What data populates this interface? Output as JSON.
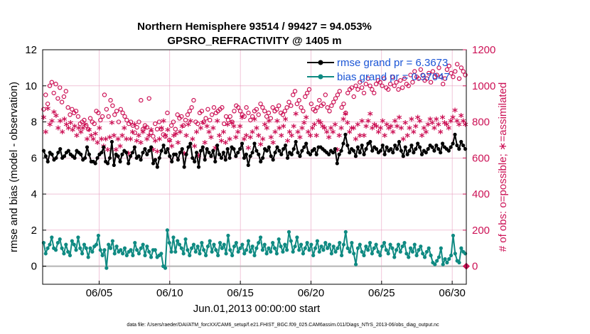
{
  "chart_data": {
    "type": "line",
    "title": "Northern Hemisphere 93514 / 99427 = 94.053%",
    "subtitle": "GPSRO_REFRACTIVITY @ 1405 m",
    "xlabel": "Jun.01,2013 00:00:00 start",
    "ylabel_left": "rmse and bias (model - observation)",
    "ylabel_right": "# of obs: o=possible; ∗=assimilated",
    "footnote": "data file: /Users/raeder/DAI/ATM_forcXX/CAM6_setup/f.e21.FHIST_BGC.f09_025.CAM6assim.011/Diags_NTrS_2013-06/obs_diag_output.nc",
    "x_range": [
      1,
      31
    ],
    "x_ticks": [
      "06/05",
      "06/10",
      "06/15",
      "06/20",
      "06/25",
      "06/30"
    ],
    "x_tick_days": [
      5,
      10,
      15,
      20,
      25,
      30
    ],
    "ylim_left": [
      -1,
      12
    ],
    "y_ticks_left": [
      "0",
      "2",
      "4",
      "6",
      "8",
      "10",
      "12"
    ],
    "ylim_right": [
      -100,
      1200
    ],
    "y_ticks_right": [
      "0",
      "200",
      "400",
      "600",
      "800",
      "1000",
      "1200"
    ],
    "grid": true,
    "legend_position": "top-right",
    "colors": {
      "rmse": "#000000",
      "bias": "#0f8a82",
      "obs": "#cc1155",
      "legend_text": "#1a55d6",
      "zero_line": "#b3b3b3",
      "grid": "#e8a0c0"
    },
    "series": [
      {
        "name": "rmse grand pr = 6.3673",
        "axis": "left",
        "values": [
          6.4,
          6.1,
          5.8,
          6.3,
          6.2,
          5.9,
          6.0,
          6.3,
          6.5,
          6.0,
          6.1,
          6.3,
          6.4,
          6.2,
          6.1,
          6.0,
          6.4,
          6.3,
          6.2,
          5.9,
          6.0,
          6.6,
          6.2,
          5.8,
          5.8,
          5.7,
          6.0,
          6.2,
          6.3,
          6.6,
          5.8,
          5.7,
          6.0,
          6.9,
          5.6,
          6.2,
          6.1,
          5.8,
          6.2,
          6.4,
          6.3,
          5.7,
          6.1,
          6.3,
          6.6,
          6.0,
          6.1,
          5.9,
          6.3,
          6.5,
          6.2,
          6.4,
          6.6,
          5.7,
          5.9,
          5.5,
          6.0,
          6.4,
          6.7,
          6.3,
          6.5,
          6.1,
          5.8,
          6.2,
          6.2,
          5.9,
          6.3,
          6.5,
          5.5,
          6.2,
          6.6,
          6.8,
          6.0,
          5.8,
          6.3,
          5.5,
          6.4,
          6.6,
          5.9,
          6.5,
          6.3,
          6.1,
          6.4,
          5.8,
          6.7,
          6.2,
          6.0,
          6.3,
          5.9,
          6.5,
          6.0,
          6.6,
          6.5,
          6.1,
          6.3,
          6.5,
          6.8,
          6.0,
          6.2,
          5.6,
          6.1,
          6.3,
          6.8,
          6.4,
          6.2,
          5.8,
          6.0,
          6.5,
          6.4,
          6.6,
          6.1,
          5.9,
          6.3,
          6.6,
          6.4,
          6.2,
          6.5,
          6.7,
          6.0,
          6.3,
          6.2,
          6.5,
          6.9,
          6.3,
          6.1,
          6.4,
          6.6,
          6.8,
          6.3,
          6.2,
          6.4,
          6.5,
          6.2,
          6.6,
          6.6,
          6.5,
          6.4,
          6.3,
          6.2,
          6.4,
          6.3,
          6.5,
          5.7,
          6.2,
          6.4,
          6.8,
          7.3,
          6.7,
          6.3,
          6.5,
          6.4,
          6.1,
          6.6,
          6.3,
          6.7,
          6.2,
          6.5,
          6.8,
          6.9,
          6.4,
          6.6,
          6.5,
          6.3,
          6.4,
          6.7,
          6.2,
          6.6,
          6.4,
          6.5,
          6.3,
          6.7,
          6.5,
          6.9,
          6.4,
          6.1,
          6.6,
          6.2,
          6.4,
          6.7,
          6.3,
          6.5,
          6.8,
          6.6,
          6.2,
          6.4,
          6.3,
          6.5,
          6.7,
          6.6,
          6.4,
          6.7,
          6.5,
          6.3,
          6.8,
          6.6,
          6.5,
          6.4,
          6.6,
          6.8,
          7.3,
          6.7,
          6.5,
          6.9,
          6.7,
          6.5
        ]
      },
      {
        "name": "bias grand pr = 0.97047",
        "axis": "left",
        "values": [
          1.3,
          0.7,
          1.0,
          1.2,
          1.6,
          1.0,
          0.9,
          1.3,
          1.5,
          1.0,
          0.7,
          1.2,
          0.8,
          0.6,
          1.4,
          1.2,
          0.9,
          1.6,
          1.0,
          0.7,
          1.2,
          1.0,
          0.5,
          1.0,
          0.8,
          1.1,
          1.2,
          1.7,
          0.9,
          0.6,
          0.9,
          -0.1,
          1.2,
          1.0,
          1.4,
          0.7,
          1.1,
          0.8,
          0.9,
          0.7,
          1.0,
          0.6,
          0.8,
          0.9,
          0.6,
          1.3,
          0.9,
          0.7,
          1.0,
          1.2,
          0.6,
          1.1,
          0.8,
          0.5,
          0.9,
          0.9,
          0.5,
          0.6,
          0.7,
          0.0,
          -0.1,
          2.0,
          1.3,
          0.8,
          1.6,
          0.8,
          1.4,
          1.2,
          1.0,
          0.7,
          1.5,
          0.9,
          0.6,
          1.0,
          1.2,
          0.8,
          1.1,
          0.7,
          1.3,
          0.9,
          0.6,
          1.1,
          1.4,
          0.8,
          1.2,
          0.9,
          0.6,
          1.3,
          1.0,
          1.2,
          0.7,
          1.7,
          0.9,
          0.6,
          1.1,
          1.3,
          0.8,
          1.0,
          1.2,
          0.7,
          0.9,
          1.4,
          0.8,
          1.1,
          0.6,
          1.0,
          1.3,
          1.6,
          0.9,
          1.2,
          0.7,
          1.0,
          0.8,
          1.3,
          1.0,
          0.7,
          1.5,
          1.1,
          0.8,
          1.2,
          0.9,
          1.9,
          1.4,
          0.8,
          1.1,
          1.6,
          0.9,
          1.2,
          0.7,
          1.0,
          1.3,
          0.9,
          1.2,
          0.6,
          1.0,
          1.4,
          0.8,
          1.1,
          0.9,
          1.3,
          1.0,
          1.2,
          0.7,
          1.1,
          0.8,
          1.0,
          1.3,
          0.6,
          1.2,
          1.9,
          1.0,
          0.8,
          1.3,
          0.7,
          0.1,
          1.0,
          1.2,
          0.8,
          0.6,
          1.1,
          0.9,
          1.3,
          0.7,
          1.0,
          1.2,
          0.8,
          0.6,
          1.1,
          1.3,
          0.9,
          0.7,
          1.2,
          1.0,
          0.5,
          0.9,
          1.2,
          0.8,
          1.1,
          1.3,
          0.7,
          0.5,
          1.0,
          0.8,
          1.2,
          0.6,
          0.9,
          1.1,
          0.7,
          0.5,
          0.8,
          1.0,
          0.6,
          0.2,
          0.1,
          0.3,
          0.5,
          1.0,
          0.1,
          0.4,
          0.2,
          0.4,
          0.6,
          1.7,
          0.7,
          0.3,
          0.2,
          1.0,
          0.8,
          0.7
        ]
      },
      {
        "name": "possible",
        "axis": "right",
        "marker": "o",
        "values": [
          870,
          950,
          900,
          1000,
          1020,
          960,
          1010,
          930,
          990,
          910,
          940,
          970,
          880,
          840,
          870,
          850,
          860,
          830,
          790,
          800,
          810,
          780,
          760,
          820,
          800,
          790,
          860,
          850,
          810,
          830,
          950,
          870,
          830,
          920,
          890,
          840,
          860,
          800,
          870,
          850,
          830,
          810,
          790,
          800,
          780,
          740,
          770,
          800,
          920,
          760,
          780,
          770,
          930,
          740,
          720,
          790,
          760,
          800,
          760,
          730,
          720,
          850,
          700,
          780,
          800,
          760,
          840,
          820,
          830,
          780,
          810,
          840,
          860,
          880,
          920,
          800,
          790,
          850,
          860,
          800,
          820,
          870,
          810,
          840,
          880,
          850,
          860,
          870,
          880,
          790,
          830,
          810,
          830,
          800,
          860,
          890,
          880,
          860,
          840,
          830,
          880,
          850,
          810,
          830,
          860,
          870,
          840,
          900,
          880,
          860,
          830,
          850,
          820,
          880,
          860,
          870,
          890,
          850,
          840,
          860,
          880,
          910,
          890,
          950,
          970,
          900,
          920,
          880,
          860,
          940,
          960,
          980,
          900,
          870,
          860,
          880,
          920,
          890,
          900,
          950,
          880,
          860,
          890,
          910,
          930,
          950,
          970,
          880,
          900,
          850,
          960,
          980,
          990,
          940,
          1000,
          980,
          1020,
          990,
          960,
          1010,
          1040,
          1000,
          980,
          960,
          1010,
          1030,
          1020,
          1000,
          1040,
          990,
          980,
          1010,
          1050,
          1000,
          1020,
          980,
          1030,
          990,
          1040,
          1010,
          1000,
          1060,
          1020,
          1080,
          1050,
          1040,
          1090,
          1060,
          1030,
          1040,
          1070,
          1020,
          1080,
          1050,
          1060,
          1100,
          1050,
          1010,
          1040,
          1090,
          1110,
          1070,
          1050,
          1080,
          1120,
          1040,
          1100,
          1080,
          1060
        ]
      },
      {
        "name": "assimilated",
        "axis": "right",
        "marker": "*",
        "values": [
          820,
          740,
          870,
          780,
          800,
          850,
          830,
          760,
          800,
          740,
          810,
          780,
          760,
          790,
          750,
          770,
          720,
          760,
          740,
          760,
          780,
          700,
          750,
          720,
          700,
          730,
          680,
          760,
          700,
          660,
          700,
          640,
          710,
          790,
          720,
          640,
          700,
          660,
          720,
          760,
          700,
          620,
          700,
          740,
          780,
          690,
          720,
          680,
          740,
          760,
          700,
          720,
          750,
          640,
          690,
          630,
          700,
          760,
          800,
          720,
          750,
          690,
          660,
          720,
          730,
          680,
          740,
          770,
          620,
          720,
          780,
          800,
          700,
          660,
          740,
          610,
          760,
          790,
          680,
          770,
          740,
          710,
          760,
          650,
          800,
          720,
          690,
          740,
          680,
          780,
          700,
          790,
          770,
          710,
          740,
          770,
          820,
          700,
          720,
          650,
          710,
          740,
          810,
          760,
          720,
          670,
          700,
          780,
          760,
          800,
          710,
          680,
          740,
          800,
          760,
          720,
          770,
          810,
          690,
          740,
          720,
          770,
          840,
          740,
          710,
          760,
          790,
          820,
          740,
          720,
          760,
          780,
          720,
          800,
          790,
          770,
          760,
          740,
          710,
          760,
          740,
          780,
          640,
          720,
          760,
          810,
          840,
          790,
          740,
          760,
          760,
          700,
          780,
          720,
          800,
          720,
          770,
          800,
          840,
          760,
          780,
          770,
          740,
          760,
          800,
          720,
          780,
          760,
          770,
          740,
          800,
          770,
          820,
          760,
          700,
          790,
          720,
          760,
          810,
          740,
          770,
          820,
          800,
          720,
          760,
          740,
          780,
          810,
          790,
          760,
          810,
          780,
          740,
          820,
          790,
          780,
          760,
          800,
          820,
          860,
          800,
          780,
          830,
          800,
          780
        ]
      }
    ]
  }
}
